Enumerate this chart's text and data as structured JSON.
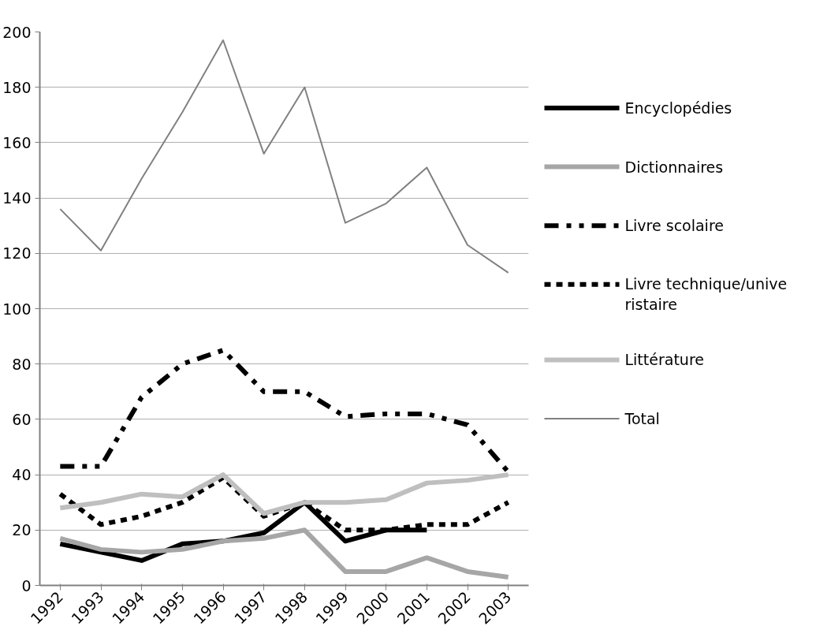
{
  "chart_data": {
    "type": "line",
    "categories": [
      "1992",
      "1993",
      "1994",
      "1995",
      "1996",
      "1997",
      "1998",
      "1999",
      "2000",
      "2001",
      "2002",
      "2003"
    ],
    "series": [
      {
        "name": "Encyclopédies",
        "color": "#000000",
        "line_style": "solid",
        "values": [
          15,
          12,
          9,
          15,
          16,
          19,
          30,
          16,
          20,
          20,
          null,
          null
        ]
      },
      {
        "name": "Dictionnaires",
        "color": "#a6a6a6",
        "line_style": "solid",
        "values": [
          17,
          13,
          12,
          13,
          16,
          17,
          20,
          5,
          5,
          10,
          5,
          3
        ]
      },
      {
        "name": "Livre scolaire",
        "color": "#000000",
        "line_style": "dashdot",
        "values": [
          43,
          43,
          68,
          80,
          85,
          70,
          70,
          61,
          62,
          62,
          58,
          41
        ]
      },
      {
        "name": "Livre technique/univeristaire",
        "color": "#000000",
        "line_style": "dashed",
        "values": [
          33,
          22,
          25,
          30,
          39,
          25,
          30,
          20,
          20,
          22,
          22,
          30
        ]
      },
      {
        "name": "Littérature",
        "color": "#bfbfbf",
        "line_style": "solid",
        "values": [
          28,
          30,
          33,
          32,
          40,
          26,
          30,
          30,
          31,
          37,
          38,
          40
        ]
      },
      {
        "name": "Total",
        "color": "#808080",
        "line_style": "solid",
        "values": [
          136,
          121,
          147,
          171,
          197,
          156,
          180,
          131,
          138,
          151,
          123,
          113
        ]
      }
    ],
    "ylim": [
      0,
      200
    ],
    "yticks": [
      0,
      20,
      40,
      60,
      80,
      100,
      120,
      140,
      160,
      180,
      200
    ],
    "grid": "y",
    "legend": "right",
    "marker": "none"
  }
}
